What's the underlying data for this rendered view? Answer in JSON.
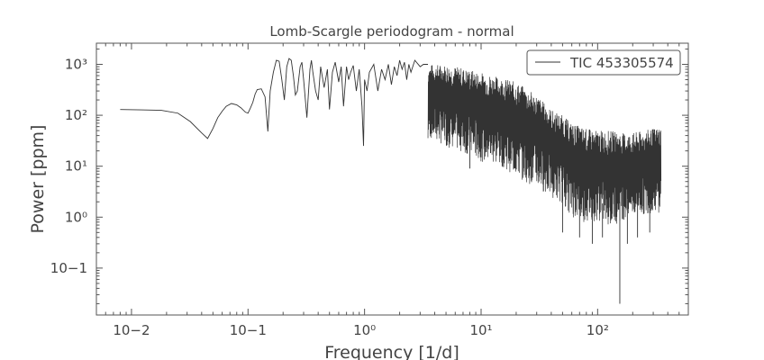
{
  "chart_data": {
    "type": "line",
    "title": "Lomb-Scargle periodogram - normal",
    "xlabel": "Frequency [1/d]",
    "ylabel": "Power [ppm]",
    "xscale": "log",
    "yscale": "log",
    "xlim": [
      0.005,
      600
    ],
    "ylim": [
      0.012,
      2600
    ],
    "x_ticks": [
      {
        "value": 0.01,
        "label": "10−2"
      },
      {
        "value": 0.1,
        "label": "10−1"
      },
      {
        "value": 1,
        "label": "10⁰"
      },
      {
        "value": 10,
        "label": "10¹"
      },
      {
        "value": 100,
        "label": "10²"
      }
    ],
    "y_ticks": [
      {
        "value": 0.1,
        "label": "10−1"
      },
      {
        "value": 1,
        "label": "10⁰"
      },
      {
        "value": 10,
        "label": "10¹"
      },
      {
        "value": 100,
        "label": "10²"
      },
      {
        "value": 1000,
        "label": "10³"
      }
    ],
    "grid": false,
    "legend": {
      "position": "top-right"
    },
    "line_color": "#333333",
    "series": [
      {
        "name": "TIC 453305574",
        "x": [
          0.008,
          0.012,
          0.018,
          0.025,
          0.032,
          0.04,
          0.045,
          0.05,
          0.055,
          0.06,
          0.065,
          0.072,
          0.08,
          0.087,
          0.095,
          0.1,
          0.105,
          0.11,
          0.115,
          0.12,
          0.13,
          0.14,
          0.148,
          0.155,
          0.165,
          0.175,
          0.185,
          0.195,
          0.205,
          0.215,
          0.225,
          0.235,
          0.245,
          0.255,
          0.265,
          0.28,
          0.29,
          0.3,
          0.32,
          0.34,
          0.35,
          0.36,
          0.38,
          0.4,
          0.42,
          0.45,
          0.48,
          0.5,
          0.53,
          0.56,
          0.6,
          0.63,
          0.66,
          0.7,
          0.73,
          0.76,
          0.8,
          0.85,
          0.9,
          0.95,
          0.98,
          1.0,
          1.05,
          1.1,
          1.2,
          1.3,
          1.4,
          1.5,
          1.6,
          1.7,
          1.8,
          1.9,
          2.0,
          2.1,
          2.2,
          2.3,
          2.4,
          2.5,
          2.7,
          3.0,
          3.2,
          3.5
        ],
        "y": [
          130,
          128,
          125,
          110,
          75,
          45,
          35,
          55,
          90,
          120,
          150,
          170,
          160,
          140,
          115,
          110,
          140,
          180,
          260,
          320,
          330,
          230,
          48,
          300,
          700,
          1200,
          1150,
          500,
          200,
          900,
          1300,
          1200,
          600,
          250,
          300,
          900,
          1100,
          500,
          90,
          800,
          1200,
          700,
          300,
          200,
          900,
          350,
          800,
          130,
          700,
          1100,
          450,
          900,
          150,
          900,
          500,
          700,
          950,
          300,
          800,
          150,
          25,
          500,
          300,
          700,
          1000,
          300,
          800,
          500,
          1000,
          400,
          900,
          600,
          1200,
          800,
          1100,
          500,
          1000,
          700,
          1200,
          900,
          1000,
          1000
        ],
        "envelope": {
          "x": [
            3.5,
            5,
            7,
            10,
            15,
            20,
            30,
            40,
            50,
            60,
            80,
            100,
            130,
            160,
            200,
            250,
            300,
            350
          ],
          "upper": [
            1000,
            1000,
            850,
            700,
            550,
            450,
            250,
            130,
            100,
            70,
            55,
            50,
            50,
            45,
            45,
            50,
            55,
            60
          ],
          "lower": [
            30,
            20,
            15,
            10,
            8,
            5,
            3,
            2,
            1.5,
            0.8,
            0.6,
            0.7,
            0.5,
            0.7,
            0.8,
            0.9,
            1.0,
            1.0
          ],
          "dips": [
            [
              8,
              9
            ],
            [
              18,
              20
            ],
            [
              50,
              0.5
            ],
            [
              70,
              0.4
            ],
            [
              90,
              0.3
            ],
            [
              110,
              0.4
            ],
            [
              155,
              0.02
            ],
            [
              180,
              0.3
            ],
            [
              220,
              0.4
            ],
            [
              280,
              0.5
            ]
          ]
        }
      }
    ]
  }
}
